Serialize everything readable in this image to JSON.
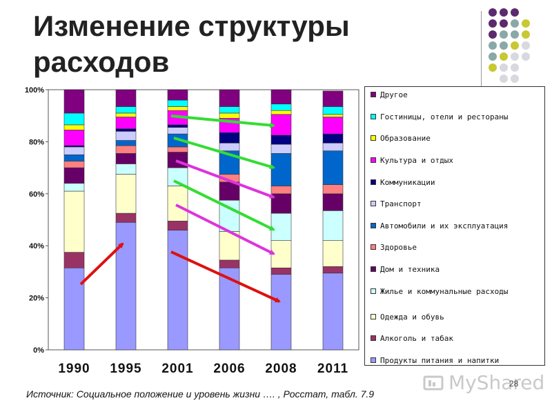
{
  "title": "Изменение структуры расходов",
  "source": "Источник: Социальное положение и уровень жизни …. , Росстат, табл. 7.9",
  "watermark": "MyShared",
  "slide_number": "28",
  "colors": {
    "food": "#9999ff",
    "alcohol": "#993366",
    "clothing": "#ffffcc",
    "housing": "#ccffff",
    "home": "#660066",
    "health": "#ff8080",
    "cars": "#0066cc",
    "transport": "#ccccff",
    "communications": "#000080",
    "culture": "#ff00ff",
    "education": "#ffff00",
    "hotels": "#00ffff",
    "other": "#800080",
    "arrow_green": "#33dd33",
    "arrow_magenta": "#dd33dd",
    "arrow_red": "#dd1111"
  },
  "chart_data": {
    "type": "bar",
    "stacked": true,
    "categories": [
      "1990",
      "1995",
      "2001",
      "2006",
      "2008",
      "2011"
    ],
    "ylim": [
      0,
      100
    ],
    "yticks": [
      "0%",
      "20%",
      "40%",
      "60%",
      "80%",
      "100%"
    ],
    "legend_position": "right",
    "series": [
      {
        "name": "Продукты питания и напитки",
        "color_key": "food",
        "values": [
          31.5,
          49.0,
          46.0,
          31.5,
          29.0,
          29.5
        ]
      },
      {
        "name": "Алкоголь и табак",
        "color_key": "alcohol",
        "values": [
          6.0,
          3.5,
          3.5,
          3.0,
          2.5,
          2.5
        ]
      },
      {
        "name": "Одежда и обувь",
        "color_key": "clothing",
        "values": [
          23.5,
          15.0,
          13.5,
          11.0,
          10.5,
          10.0
        ]
      },
      {
        "name": "Жилье и коммунальные расходы",
        "color_key": "housing",
        "values": [
          3.0,
          4.0,
          7.0,
          12.0,
          10.5,
          11.5
        ]
      },
      {
        "name": "Дом и техника",
        "color_key": "home",
        "values": [
          6.0,
          4.0,
          6.0,
          7.0,
          7.5,
          6.5
        ]
      },
      {
        "name": "Здоровье",
        "color_key": "health",
        "values": [
          2.5,
          3.0,
          2.0,
          3.0,
          3.0,
          3.5
        ]
      },
      {
        "name": "Автомобили и их эксплуатация",
        "color_key": "cars",
        "values": [
          2.5,
          2.0,
          5.0,
          9.0,
          12.5,
          13.0
        ]
      },
      {
        "name": "Транспорт",
        "color_key": "transport",
        "values": [
          3.0,
          3.5,
          2.5,
          3.0,
          3.5,
          3.0
        ]
      },
      {
        "name": "Коммуникации",
        "color_key": "communications",
        "values": [
          0.5,
          1.0,
          1.0,
          4.0,
          3.5,
          3.5
        ]
      },
      {
        "name": "Культура и отдых",
        "color_key": "culture",
        "values": [
          6.0,
          4.5,
          5.5,
          5.5,
          8.0,
          6.5
        ]
      },
      {
        "name": "Образование",
        "color_key": "education",
        "values": [
          2.0,
          1.5,
          1.5,
          2.0,
          1.5,
          1.0
        ]
      },
      {
        "name": "Гостиницы, отели и рестораны",
        "color_key": "hotels",
        "values": [
          4.5,
          2.5,
          2.5,
          2.5,
          2.5,
          3.0
        ]
      },
      {
        "name": "Другое",
        "color_key": "other",
        "values": [
          9.0,
          6.5,
          4.0,
          6.5,
          5.5,
          6.0
        ]
      }
    ]
  }
}
